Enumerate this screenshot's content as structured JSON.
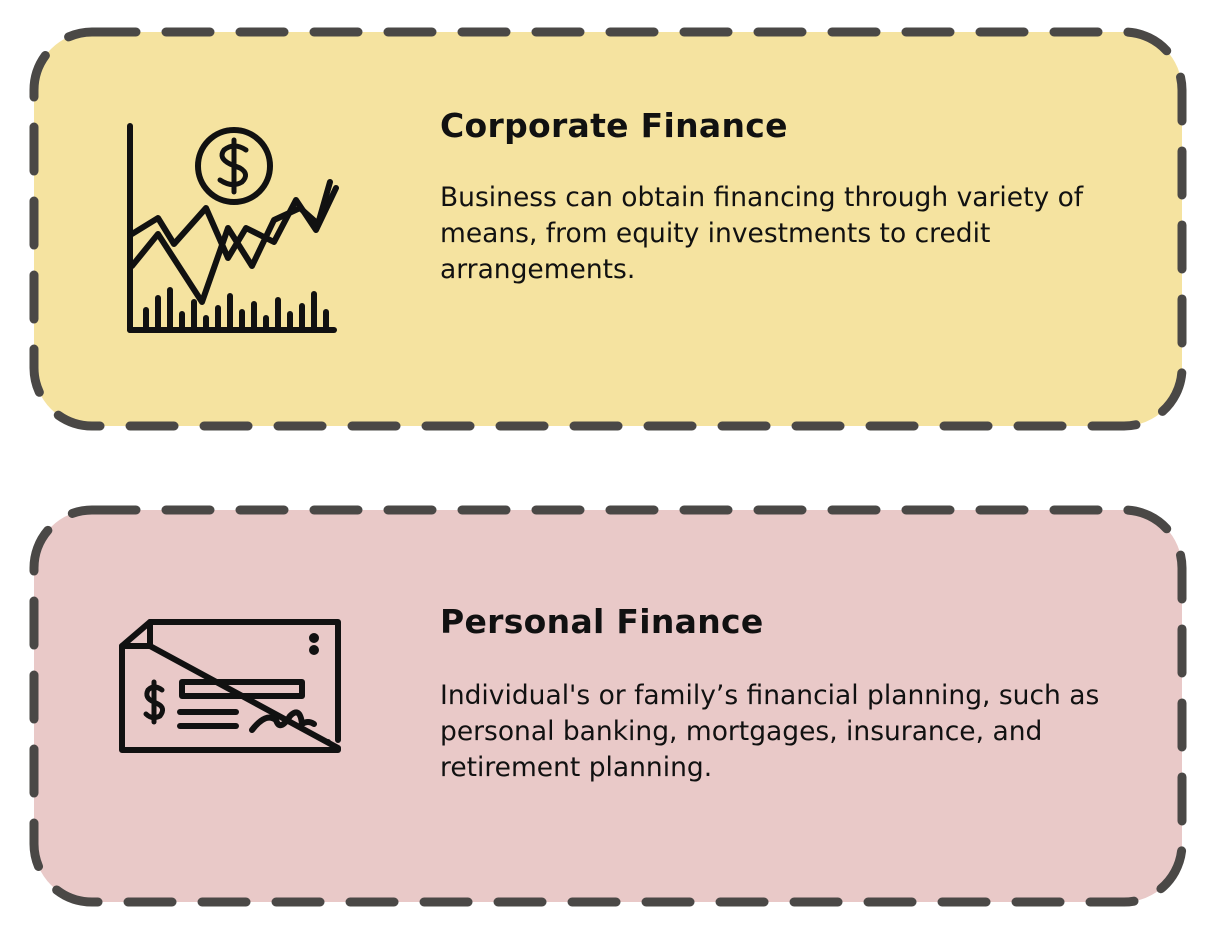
{
  "cards": [
    {
      "title": "Corporate Finance",
      "description": "Business can obtain financing through variety of means, from equity investments to credit arrangements.",
      "icon": "stock-chart-dollar-icon",
      "background": "#f5e3a0"
    },
    {
      "title": "Personal Finance",
      "description": "Individual's or family’s financial planning, such as personal banking, mortgages, insurance, and retirement planning.",
      "icon": "bank-check-icon",
      "background": "#e9c9c8"
    }
  ],
  "colors": {
    "border": "#4a4846",
    "ink": "#111111"
  }
}
